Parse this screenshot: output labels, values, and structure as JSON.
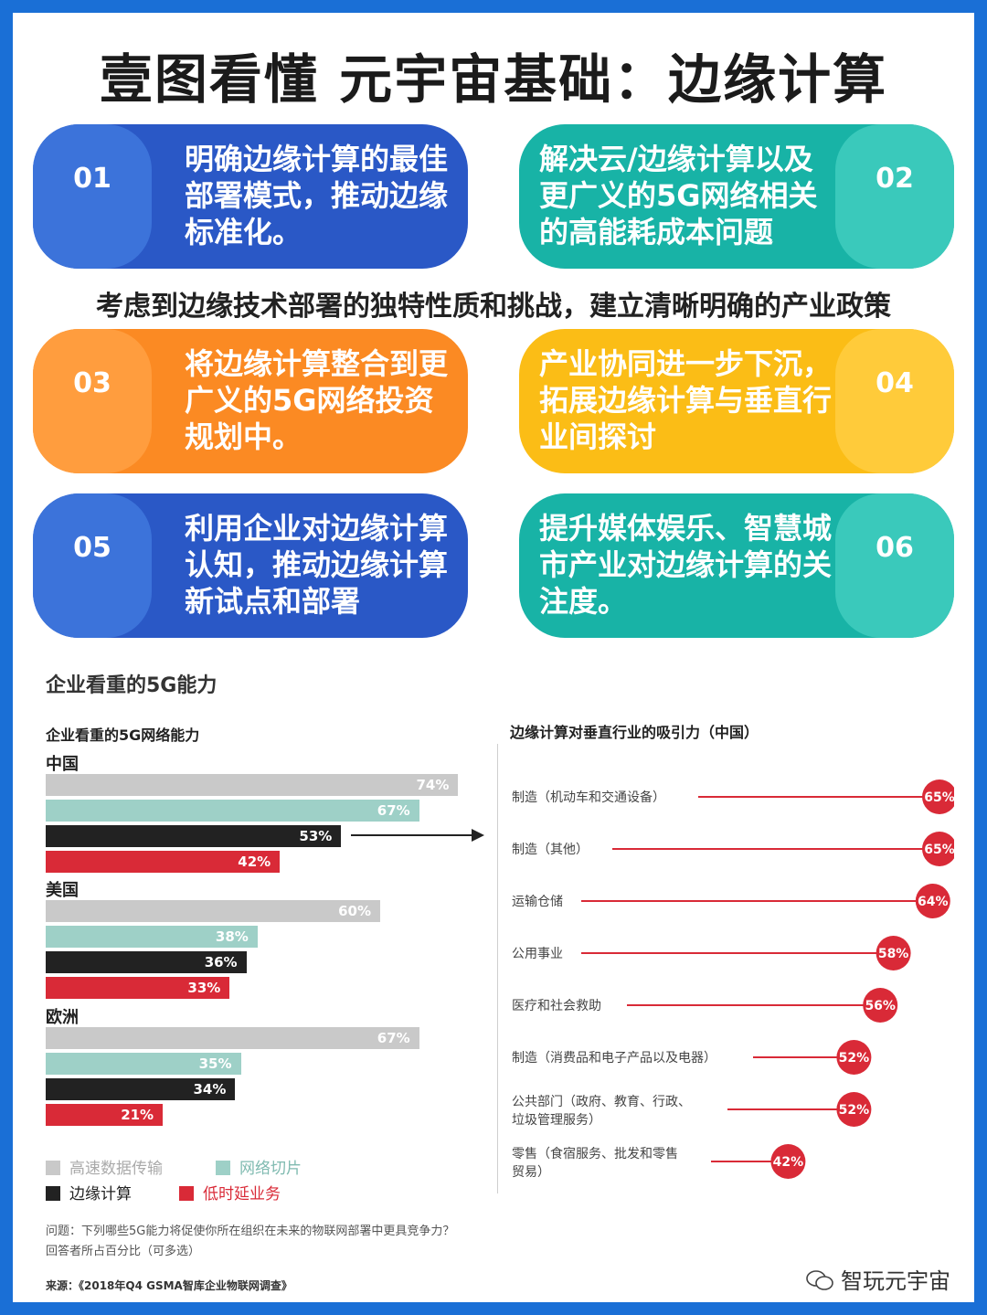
{
  "title": "壹图看懂 元宇宙基础：边缘计算",
  "cards": [
    {
      "num": "01",
      "text": "明确边缘计算的最佳部署模式，推动边缘标准化。"
    },
    {
      "num": "02",
      "text": "解决云/边缘计算以及更广义的5G网络相关的高能耗成本问题"
    },
    {
      "num": "03",
      "text": "将边缘计算整合到更广义的5G网络投资规划中。"
    },
    {
      "num": "04",
      "text": "产业协同进一步下沉，拓展边缘计算与垂直行业间探讨"
    },
    {
      "num": "05",
      "text": "利用企业对边缘计算认知，推动边缘计算新试点和部署"
    },
    {
      "num": "06",
      "text": "提升媒体娱乐、智慧城市产业对边缘计算的关注度。"
    }
  ],
  "policy": "考虑到边缘技术部署的独特性质和挑战，建立清晰明确的产业政策",
  "section_title": "企业看重的5G能力",
  "chart_data": [
    {
      "type": "bar",
      "title": "企业看重的5G网络能力",
      "categories": [
        "中国",
        "美国",
        "欧洲"
      ],
      "series": [
        {
          "name": "高速数据传输",
          "values": [
            74,
            60,
            67
          ]
        },
        {
          "name": "网络切片",
          "values": [
            67,
            38,
            35
          ]
        },
        {
          "name": "边缘计算",
          "values": [
            53,
            36,
            34
          ]
        },
        {
          "name": "低时延业务",
          "values": [
            42,
            33,
            21
          ]
        }
      ],
      "unit": "%",
      "colors": [
        "#c9c9c9",
        "#9ed0c7",
        "#222222",
        "#d92a37"
      ]
    },
    {
      "type": "scatter",
      "title": "边缘计算对垂直行业的吸引力（中国）",
      "categories": [
        "制造（机动车和交通设备）",
        "制造（其他）",
        "运输仓储",
        "公用事业",
        "医疗和社会救助",
        "制造（消费品和电子产品以及电器）",
        "公共部门（政府、教育、行政、垃圾管理服务）",
        "零售（食宿服务、批发和零售贸易）"
      ],
      "values": [
        65,
        65,
        64,
        58,
        56,
        52,
        52,
        42
      ],
      "unit": "%",
      "color": "#d92a37"
    }
  ],
  "question": "问题：下列哪些5G能力将促使你所在组织在未来的物联网部署中更具竞争力？",
  "answer_note": "回答者所占百分比（可多选）",
  "source": "来源：《2018年Q4 GSMA智库企业物联网调查》",
  "brand": "智玩元宇宙"
}
